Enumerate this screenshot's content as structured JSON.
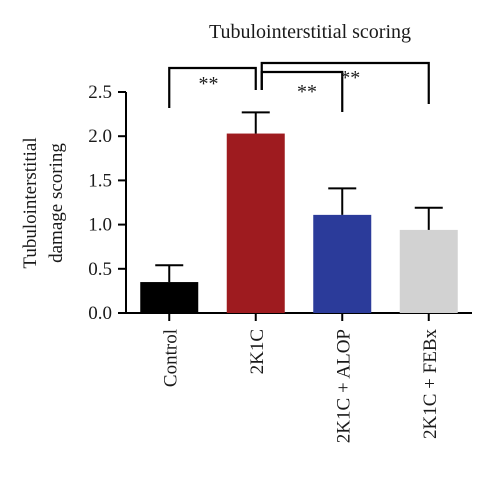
{
  "chart_data": {
    "type": "bar",
    "title": "Tubulointerstitial scoring",
    "ylabel": [
      "Tubulointerstitial",
      "damage scoring"
    ],
    "xlabel": "",
    "categories": [
      "Control",
      "2K1C",
      "2K1C + ALOP",
      "2K1C + FEBx"
    ],
    "values": [
      0.35,
      2.03,
      1.11,
      0.94
    ],
    "errors": [
      0.19,
      0.24,
      0.3,
      0.25
    ],
    "colors": [
      "#000000",
      "#9e1b1f",
      "#2b3b9a",
      "#d2d2d2"
    ],
    "ylim": [
      0,
      2.5
    ],
    "yticks": [
      0.0,
      0.5,
      1.0,
      1.5,
      2.0,
      2.5
    ],
    "ytick_labels": [
      "0.0",
      "0.5",
      "1.0",
      "1.5",
      "2.0",
      "2.5"
    ],
    "grid": false,
    "significance": [
      {
        "from": "Control",
        "to": "2K1C",
        "label": "**"
      },
      {
        "from": "2K1C",
        "to": "2K1C + ALOP",
        "label": "**"
      },
      {
        "from": "2K1C",
        "to": "2K1C + FEBx",
        "label": "**"
      }
    ]
  }
}
